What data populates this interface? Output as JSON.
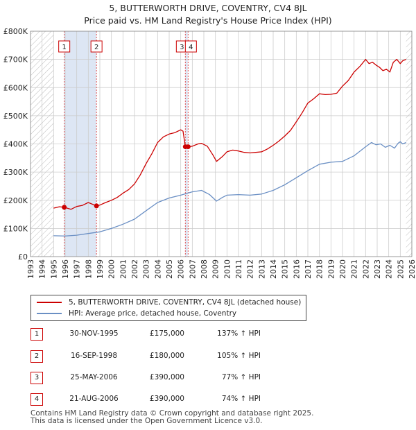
{
  "header": {
    "title_line1": "5, BUTTERWORTH DRIVE, COVENTRY, CV4 8JL",
    "title_line2": "Price paid vs. HM Land Registry's House Price Index (HPI)"
  },
  "colors": {
    "property": "#cc0000",
    "hpi": "#6a8fc4",
    "shade": "#dde6f4",
    "grid": "#cccccc"
  },
  "chart_data": {
    "type": "line",
    "title": "Price paid vs. HM Land Registry's House Price Index (HPI)",
    "xlim": [
      1993,
      2026
    ],
    "ylim": [
      0,
      800000
    ],
    "y_ticks": [
      0,
      100000,
      200000,
      300000,
      400000,
      500000,
      600000,
      700000,
      800000
    ],
    "y_tick_labels": [
      "£0",
      "£100K",
      "£200K",
      "£300K",
      "£400K",
      "£500K",
      "£600K",
      "£700K",
      "£800K"
    ],
    "x_ticks": [
      1993,
      1994,
      1995,
      1996,
      1997,
      1998,
      1999,
      2000,
      2001,
      2002,
      2003,
      2004,
      2005,
      2006,
      2007,
      2008,
      2009,
      2010,
      2011,
      2012,
      2013,
      2014,
      2015,
      2016,
      2017,
      2018,
      2019,
      2020,
      2021,
      2022,
      2023,
      2024,
      2025,
      2026
    ],
    "x_tick_labels": [
      "1993",
      "1994",
      "1995",
      "1996",
      "1997",
      "1998",
      "1999",
      "2000",
      "2001",
      "2002",
      "2003",
      "2004",
      "2005",
      "2006",
      "2007",
      "2008",
      "2009",
      "2010",
      "2011",
      "2012",
      "2013",
      "2014",
      "2015",
      "2016",
      "2017",
      "2018",
      "2019",
      "2020",
      "2021",
      "2022",
      "2023",
      "2024",
      "2025",
      "2026"
    ],
    "data_start": 1995.0,
    "data_end": 2025.5,
    "shaded_ranges": [
      [
        1995.9,
        1998.7
      ],
      [
        2006.4,
        2006.6
      ]
    ],
    "series": [
      {
        "name": "5, BUTTERWORTH DRIVE, COVENTRY, CV4 8JL (detached house)",
        "x": [
          1995.0,
          1995.5,
          1995.92,
          1996.5,
          1997.0,
          1997.5,
          1998.0,
          1998.71,
          1999.0,
          1999.5,
          2000.0,
          2000.5,
          2001.0,
          2001.5,
          2002.0,
          2002.5,
          2003.0,
          2003.5,
          2004.0,
          2004.5,
          2005.0,
          2005.5,
          2006.0,
          2006.2,
          2006.4,
          2006.64,
          2007.0,
          2007.5,
          2007.8,
          2008.3,
          2008.8,
          2009.1,
          2009.6,
          2010.0,
          2010.5,
          2011.0,
          2011.5,
          2012.0,
          2012.5,
          2013.0,
          2013.5,
          2014.0,
          2014.5,
          2015.0,
          2015.5,
          2016.0,
          2016.5,
          2017.0,
          2017.5,
          2018.0,
          2018.5,
          2019.0,
          2019.5,
          2020.0,
          2020.5,
          2021.0,
          2021.5,
          2022.0,
          2022.3,
          2022.6,
          2022.9,
          2023.2,
          2023.5,
          2023.8,
          2024.1,
          2024.4,
          2024.7,
          2025.0,
          2025.2,
          2025.5
        ],
        "values": [
          172000,
          177000,
          175000,
          168000,
          178000,
          182000,
          192000,
          180000,
          183000,
          192000,
          200000,
          210000,
          225000,
          238000,
          258000,
          290000,
          330000,
          365000,
          405000,
          425000,
          435000,
          440000,
          450000,
          445000,
          390000,
          390000,
          392000,
          400000,
          402000,
          392000,
          360000,
          338000,
          355000,
          372000,
          378000,
          375000,
          370000,
          368000,
          370000,
          372000,
          382000,
          395000,
          410000,
          428000,
          448000,
          478000,
          510000,
          545000,
          560000,
          578000,
          575000,
          576000,
          580000,
          605000,
          625000,
          655000,
          675000,
          700000,
          685000,
          690000,
          680000,
          672000,
          660000,
          665000,
          655000,
          690000,
          700000,
          685000,
          695000,
          700000
        ]
      },
      {
        "name": "HPI: Average price, detached house, Coventry",
        "x": [
          1995.0,
          1996.0,
          1997.0,
          1998.0,
          1999.0,
          2000.0,
          2001.0,
          2002.0,
          2003.0,
          2004.0,
          2005.0,
          2006.0,
          2007.0,
          2007.8,
          2008.5,
          2009.1,
          2009.6,
          2010.0,
          2011.0,
          2012.0,
          2013.0,
          2014.0,
          2015.0,
          2016.0,
          2017.0,
          2018.0,
          2019.0,
          2020.0,
          2021.0,
          2022.0,
          2022.5,
          2022.9,
          2023.3,
          2023.7,
          2024.1,
          2024.5,
          2024.8,
          2025.0,
          2025.2,
          2025.5
        ],
        "values": [
          74000,
          73000,
          76000,
          82000,
          88000,
          100000,
          115000,
          133000,
          163000,
          192000,
          208000,
          218000,
          230000,
          235000,
          220000,
          197000,
          210000,
          218000,
          220000,
          218000,
          222000,
          235000,
          255000,
          280000,
          305000,
          328000,
          335000,
          338000,
          358000,
          390000,
          405000,
          397000,
          400000,
          388000,
          395000,
          385000,
          402000,
          408000,
          400000,
          405000
        ]
      }
    ],
    "sales": [
      {
        "id": "1",
        "x": 1995.92,
        "value": 175000
      },
      {
        "id": "2",
        "x": 1998.71,
        "value": 180000
      },
      {
        "id": "3",
        "x": 2006.4,
        "value": 390000
      },
      {
        "id": "4",
        "x": 2006.64,
        "value": 390000
      }
    ]
  },
  "legend": {
    "property_label": "5, BUTTERWORTH DRIVE, COVENTRY, CV4 8JL (detached house)",
    "hpi_label": "HPI: Average price, detached house, Coventry"
  },
  "sales_table": [
    {
      "num": "1",
      "date": "30-NOV-1995",
      "price": "£175,000",
      "hpi": "137% ↑ HPI"
    },
    {
      "num": "2",
      "date": "16-SEP-1998",
      "price": "£180,000",
      "hpi": "105% ↑ HPI"
    },
    {
      "num": "3",
      "date": "25-MAY-2006",
      "price": "£390,000",
      "hpi": "77% ↑ HPI"
    },
    {
      "num": "4",
      "date": "21-AUG-2006",
      "price": "£390,000",
      "hpi": "74% ↑ HPI"
    }
  ],
  "footer": {
    "line1": "Contains HM Land Registry data © Crown copyright and database right 2025.",
    "line2": "This data is licensed under the Open Government Licence v3.0."
  }
}
